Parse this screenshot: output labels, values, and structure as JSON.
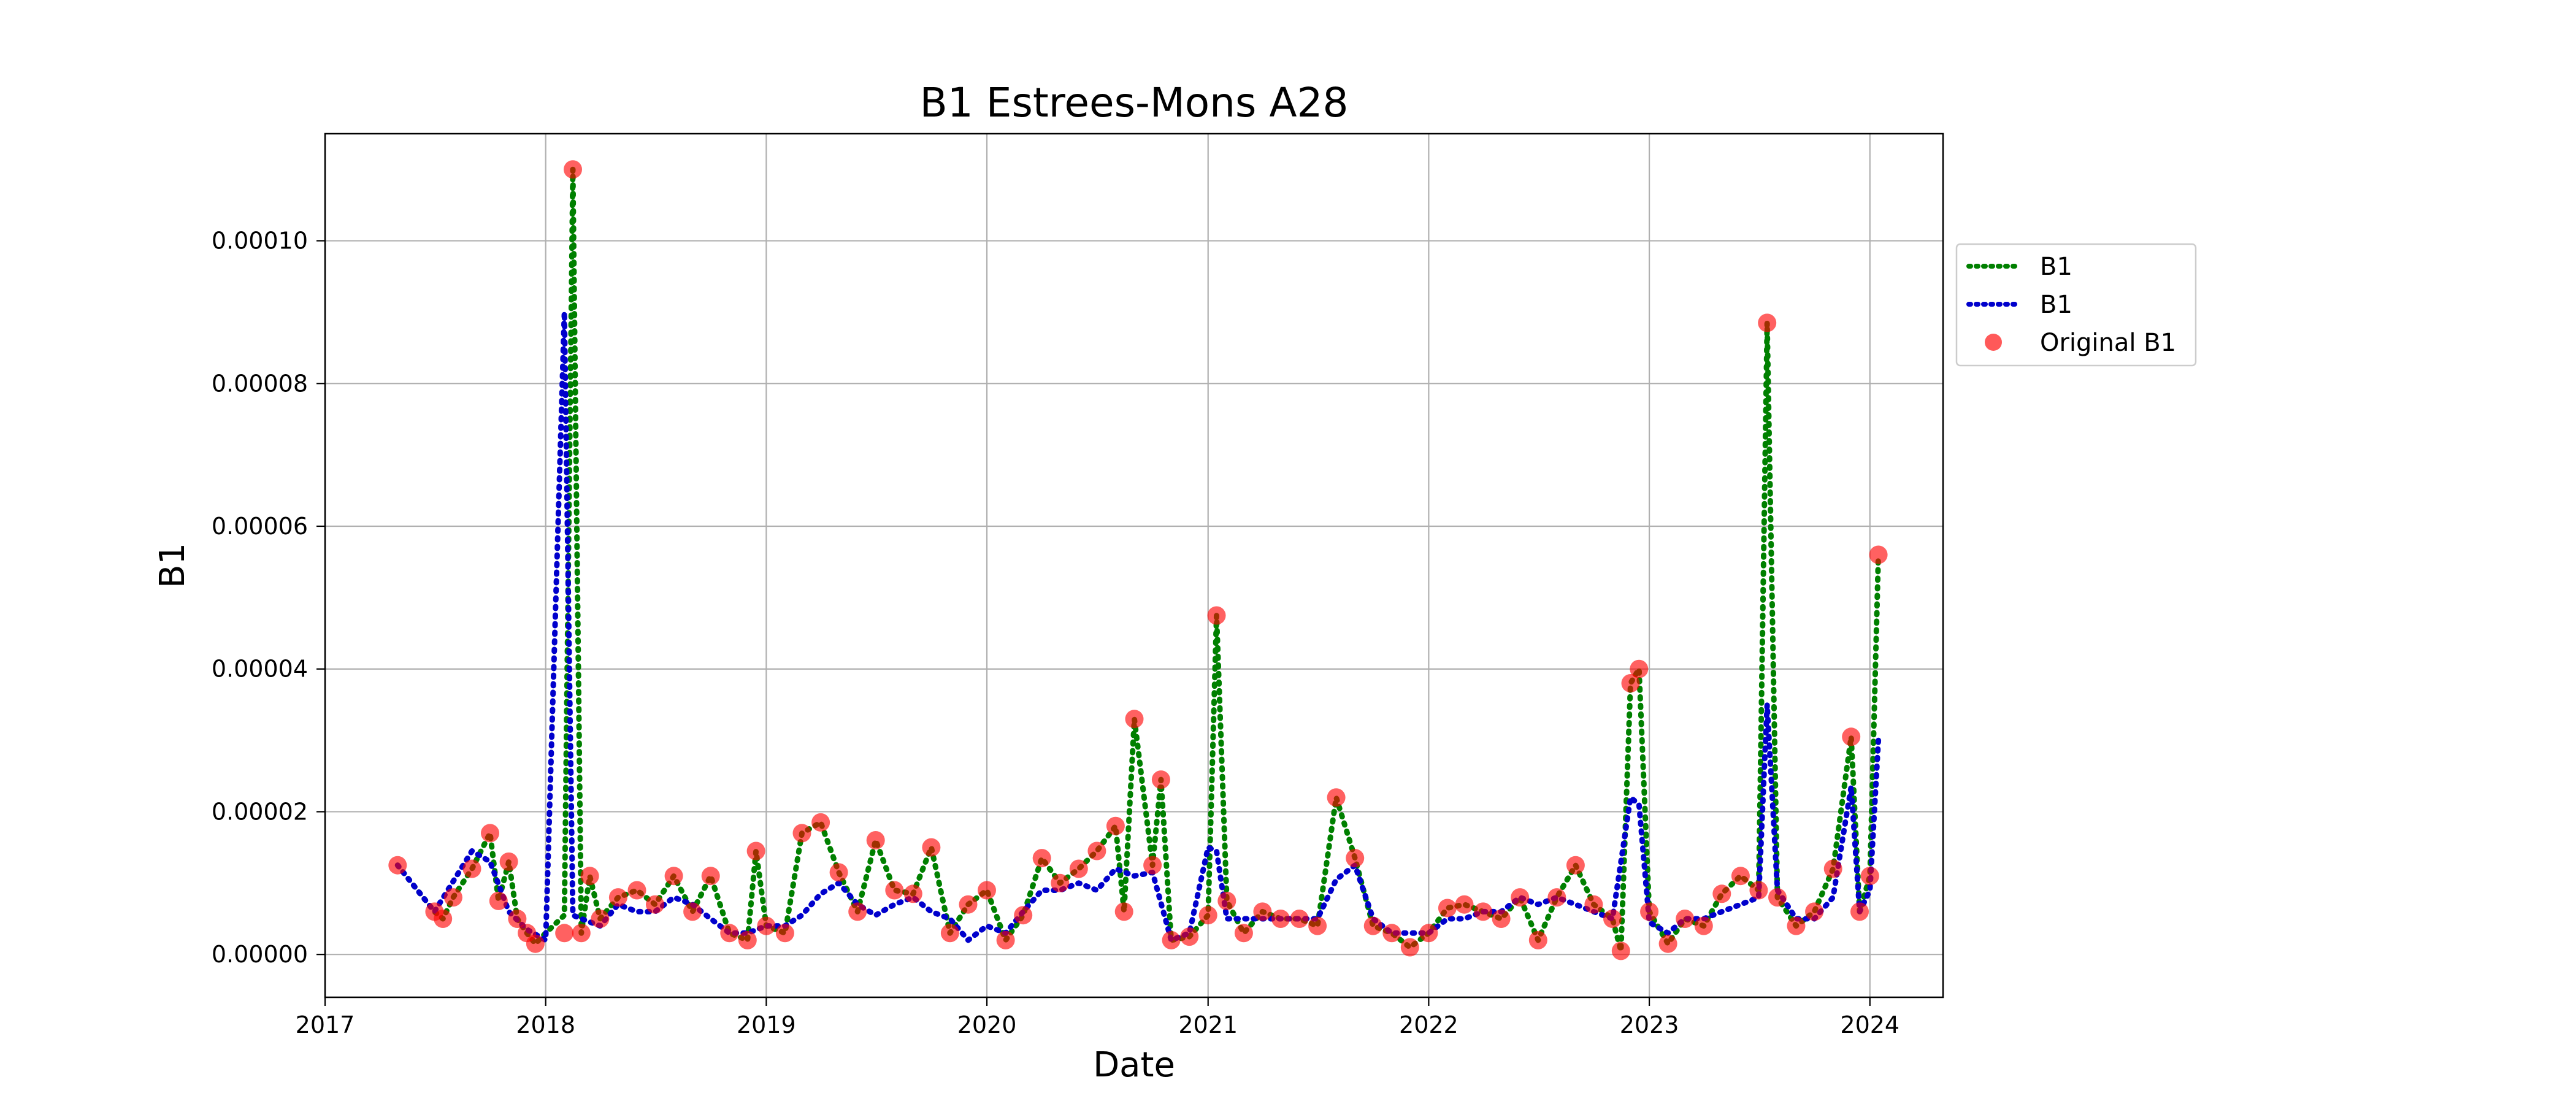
{
  "chart_data": {
    "type": "line",
    "title": "B1 Estrees-Mons A28",
    "xlabel": "Date",
    "ylabel": "B1",
    "xlim": [
      "2017-01-01",
      "2024-05-01"
    ],
    "ylim": [
      -6e-06,
      0.000115
    ],
    "x_ticks": [
      "2017",
      "2018",
      "2019",
      "2020",
      "2021",
      "2022",
      "2023",
      "2024"
    ],
    "x_tick_dates": [
      "2017-01-01",
      "2018-01-01",
      "2019-01-01",
      "2020-01-01",
      "2021-01-01",
      "2022-01-01",
      "2023-01-01",
      "2024-01-01"
    ],
    "y_ticks": [
      "0.00000",
      "0.00002",
      "0.00004",
      "0.00006",
      "0.00008",
      "0.00010"
    ],
    "y_tick_values": [
      0,
      2e-05,
      4e-05,
      6e-05,
      8e-05,
      0.0001
    ],
    "grid": true,
    "legend_position": "outside right, top",
    "series": [
      {
        "name": "B1",
        "style": "dotted",
        "color": "#008000",
        "x": [
          "2017-05-01",
          "2017-07-01",
          "2017-07-15",
          "2017-08-01",
          "2017-09-01",
          "2017-10-01",
          "2017-10-15",
          "2017-11-01",
          "2017-11-15",
          "2017-12-01",
          "2017-12-15",
          "2018-01-01",
          "2018-02-01",
          "2018-02-15",
          "2018-03-01",
          "2018-03-15",
          "2018-04-01",
          "2018-05-01",
          "2018-06-01",
          "2018-07-01",
          "2018-08-01",
          "2018-09-01",
          "2018-10-01",
          "2018-11-01",
          "2018-12-01",
          "2018-12-15",
          "2019-01-01",
          "2019-02-01",
          "2019-03-01",
          "2019-04-01",
          "2019-05-01",
          "2019-06-01",
          "2019-07-01",
          "2019-08-01",
          "2019-09-01",
          "2019-10-01",
          "2019-11-01",
          "2019-12-01",
          "2020-01-01",
          "2020-02-01",
          "2020-03-01",
          "2020-04-01",
          "2020-05-01",
          "2020-06-01",
          "2020-07-01",
          "2020-08-01",
          "2020-08-15",
          "2020-09-01",
          "2020-10-01",
          "2020-10-15",
          "2020-11-01",
          "2020-12-01",
          "2021-01-01",
          "2021-01-15",
          "2021-02-01",
          "2021-03-01",
          "2021-04-01",
          "2021-05-01",
          "2021-06-01",
          "2021-07-01",
          "2021-08-01",
          "2021-09-01",
          "2021-10-01",
          "2021-11-01",
          "2021-12-01",
          "2022-01-01",
          "2022-02-01",
          "2022-03-01",
          "2022-04-01",
          "2022-05-01",
          "2022-06-01",
          "2022-07-01",
          "2022-08-01",
          "2022-09-01",
          "2022-10-01",
          "2022-11-01",
          "2022-11-15",
          "2022-12-01",
          "2022-12-15",
          "2023-01-01",
          "2023-02-01",
          "2023-03-01",
          "2023-04-01",
          "2023-05-01",
          "2023-06-01",
          "2023-07-01",
          "2023-07-15",
          "2023-08-01",
          "2023-09-01",
          "2023-10-01",
          "2023-11-01",
          "2023-12-01",
          "2023-12-15",
          "2024-01-01",
          "2024-01-15"
        ],
        "y": [
          1.25e-05,
          6e-06,
          5e-06,
          8e-06,
          1.2e-05,
          1.7e-05,
          7.5e-06,
          1.3e-05,
          5e-06,
          3e-06,
          1.5e-06,
          3e-06,
          5.5e-06,
          0.00011,
          3e-06,
          1.1e-05,
          5e-06,
          8e-06,
          9e-06,
          7e-06,
          1.1e-05,
          6e-06,
          1.1e-05,
          3e-06,
          2e-06,
          1.45e-05,
          4e-06,
          3e-06,
          1.7e-05,
          1.85e-05,
          1.15e-05,
          6e-06,
          1.6e-05,
          9e-06,
          8.5e-06,
          1.5e-05,
          3e-06,
          7e-06,
          9e-06,
          2e-06,
          5.5e-06,
          1.35e-05,
          1e-05,
          1.2e-05,
          1.45e-05,
          1.8e-05,
          6e-06,
          3.3e-05,
          1.25e-05,
          2.45e-05,
          2e-06,
          2.5e-06,
          5.5e-06,
          4.75e-05,
          7.5e-06,
          3e-06,
          6e-06,
          5e-06,
          5e-06,
          4e-06,
          2.2e-05,
          1.35e-05,
          4e-06,
          3e-06,
          1e-06,
          3e-06,
          6.5e-06,
          7e-06,
          6e-06,
          5e-06,
          8e-06,
          2e-06,
          8e-06,
          1.25e-05,
          7e-06,
          5e-06,
          5e-07,
          3.8e-05,
          4e-05,
          6e-06,
          1.5e-06,
          5e-06,
          4e-06,
          8.5e-06,
          1.1e-05,
          9e-06,
          8.85e-05,
          8e-06,
          4e-06,
          6e-06,
          1.2e-05,
          3.05e-05,
          6e-06,
          1.1e-05,
          5.6e-05
        ]
      },
      {
        "name": "B1",
        "style": "dotted",
        "color": "#0000cc",
        "x": [
          "2017-05-01",
          "2017-07-01",
          "2017-09-01",
          "2017-10-01",
          "2017-11-01",
          "2017-12-01",
          "2018-01-01",
          "2018-02-01",
          "2018-02-15",
          "2018-03-01",
          "2018-04-01",
          "2018-05-01",
          "2018-06-01",
          "2018-07-01",
          "2018-08-01",
          "2018-09-01",
          "2018-10-01",
          "2018-11-01",
          "2018-12-01",
          "2019-01-01",
          "2019-02-01",
          "2019-03-01",
          "2019-04-01",
          "2019-05-01",
          "2019-06-01",
          "2019-07-01",
          "2019-08-01",
          "2019-09-01",
          "2019-10-01",
          "2019-11-01",
          "2019-12-01",
          "2020-01-01",
          "2020-02-01",
          "2020-03-01",
          "2020-04-01",
          "2020-05-01",
          "2020-06-01",
          "2020-07-01",
          "2020-08-01",
          "2020-09-01",
          "2020-10-01",
          "2020-11-01",
          "2020-12-01",
          "2021-01-01",
          "2021-01-15",
          "2021-02-01",
          "2021-03-01",
          "2021-04-01",
          "2021-05-01",
          "2021-06-01",
          "2021-07-01",
          "2021-08-01",
          "2021-09-01",
          "2021-10-01",
          "2021-11-01",
          "2021-12-01",
          "2022-01-01",
          "2022-02-01",
          "2022-03-01",
          "2022-04-01",
          "2022-05-01",
          "2022-06-01",
          "2022-07-01",
          "2022-08-01",
          "2022-09-01",
          "2022-10-01",
          "2022-11-01",
          "2022-12-01",
          "2022-12-15",
          "2023-01-01",
          "2023-02-01",
          "2023-03-01",
          "2023-04-01",
          "2023-05-01",
          "2023-06-01",
          "2023-07-01",
          "2023-07-15",
          "2023-08-01",
          "2023-09-01",
          "2023-10-01",
          "2023-11-01",
          "2023-12-01",
          "2023-12-15",
          "2024-01-01",
          "2024-01-15"
        ],
        "y": [
          1.25e-05,
          6e-06,
          1.45e-05,
          1.3e-05,
          6e-06,
          3.5e-06,
          2e-06,
          9e-05,
          5.5e-06,
          5e-06,
          4e-06,
          7e-06,
          6e-06,
          6e-06,
          8e-06,
          7e-06,
          5e-06,
          3e-06,
          3e-06,
          4e-06,
          4e-06,
          5.5e-06,
          8.5e-06,
          1e-05,
          7e-06,
          5.5e-06,
          7e-06,
          8e-06,
          6e-06,
          5e-06,
          2e-06,
          4e-06,
          3e-06,
          6e-06,
          9e-06,
          9e-06,
          1e-05,
          9e-06,
          1.2e-05,
          1.1e-05,
          1.15e-05,
          2e-06,
          3e-06,
          1.5e-05,
          1.45e-05,
          5e-06,
          5e-06,
          5e-06,
          5e-06,
          5e-06,
          5e-06,
          1.05e-05,
          1.25e-05,
          5e-06,
          3e-06,
          3e-06,
          3e-06,
          5e-06,
          5e-06,
          6e-06,
          6e-06,
          8e-06,
          7e-06,
          8e-06,
          7e-06,
          6e-06,
          5e-06,
          2.2e-05,
          2.1e-05,
          4.5e-06,
          3e-06,
          5e-06,
          5e-06,
          6e-06,
          7e-06,
          8e-06,
          3.5e-05,
          9e-06,
          5e-06,
          5e-06,
          8e-06,
          2.35e-05,
          6e-06,
          9e-06,
          3e-05
        ]
      },
      {
        "name": "Original B1",
        "style": "markers",
        "color": "#ff0000",
        "x": [
          "2017-05-01",
          "2017-07-01",
          "2017-07-15",
          "2017-08-01",
          "2017-09-01",
          "2017-10-01",
          "2017-10-15",
          "2017-11-01",
          "2017-11-15",
          "2017-12-01",
          "2017-12-15",
          "2018-02-01",
          "2018-02-15",
          "2018-03-01",
          "2018-03-15",
          "2018-04-01",
          "2018-05-01",
          "2018-06-01",
          "2018-07-01",
          "2018-08-01",
          "2018-09-01",
          "2018-10-01",
          "2018-11-01",
          "2018-12-01",
          "2018-12-15",
          "2019-01-01",
          "2019-02-01",
          "2019-03-01",
          "2019-04-01",
          "2019-05-01",
          "2019-06-01",
          "2019-07-01",
          "2019-08-01",
          "2019-09-01",
          "2019-10-01",
          "2019-11-01",
          "2019-12-01",
          "2020-01-01",
          "2020-02-01",
          "2020-03-01",
          "2020-04-01",
          "2020-05-01",
          "2020-06-01",
          "2020-07-01",
          "2020-08-01",
          "2020-08-15",
          "2020-09-01",
          "2020-10-01",
          "2020-10-15",
          "2020-11-01",
          "2020-12-01",
          "2021-01-01",
          "2021-01-15",
          "2021-02-01",
          "2021-03-01",
          "2021-04-01",
          "2021-05-01",
          "2021-06-01",
          "2021-07-01",
          "2021-08-01",
          "2021-09-01",
          "2021-10-01",
          "2021-11-01",
          "2021-12-01",
          "2022-01-01",
          "2022-02-01",
          "2022-03-01",
          "2022-04-01",
          "2022-05-01",
          "2022-06-01",
          "2022-07-01",
          "2022-08-01",
          "2022-09-01",
          "2022-10-01",
          "2022-11-01",
          "2022-11-15",
          "2022-12-01",
          "2022-12-15",
          "2023-01-01",
          "2023-02-01",
          "2023-03-01",
          "2023-04-01",
          "2023-05-01",
          "2023-06-01",
          "2023-07-01",
          "2023-07-15",
          "2023-08-01",
          "2023-09-01",
          "2023-10-01",
          "2023-11-01",
          "2023-12-01",
          "2023-12-15",
          "2024-01-01",
          "2024-01-15"
        ],
        "y": [
          1.25e-05,
          6e-06,
          5e-06,
          8e-06,
          1.2e-05,
          1.7e-05,
          7.5e-06,
          1.3e-05,
          5e-06,
          3e-06,
          1.5e-06,
          3e-06,
          0.00011,
          3e-06,
          1.1e-05,
          5e-06,
          8e-06,
          9e-06,
          7e-06,
          1.1e-05,
          6e-06,
          1.1e-05,
          3e-06,
          2e-06,
          1.45e-05,
          4e-06,
          3e-06,
          1.7e-05,
          1.85e-05,
          1.15e-05,
          6e-06,
          1.6e-05,
          9e-06,
          8.5e-06,
          1.5e-05,
          3e-06,
          7e-06,
          9e-06,
          2e-06,
          5.5e-06,
          1.35e-05,
          1e-05,
          1.2e-05,
          1.45e-05,
          1.8e-05,
          6e-06,
          3.3e-05,
          1.25e-05,
          2.45e-05,
          2e-06,
          2.5e-06,
          5.5e-06,
          4.75e-05,
          7.5e-06,
          3e-06,
          6e-06,
          5e-06,
          5e-06,
          4e-06,
          2.2e-05,
          1.35e-05,
          4e-06,
          3e-06,
          1e-06,
          3e-06,
          6.5e-06,
          7e-06,
          6e-06,
          5e-06,
          8e-06,
          2e-06,
          8e-06,
          1.25e-05,
          7e-06,
          5e-06,
          5e-07,
          3.8e-05,
          4e-05,
          6e-06,
          1.5e-06,
          5e-06,
          4e-06,
          8.5e-06,
          1.1e-05,
          9e-06,
          8.85e-05,
          8e-06,
          4e-06,
          6e-06,
          1.2e-05,
          3.05e-05,
          6e-06,
          1.1e-05,
          5.6e-05
        ]
      }
    ]
  }
}
